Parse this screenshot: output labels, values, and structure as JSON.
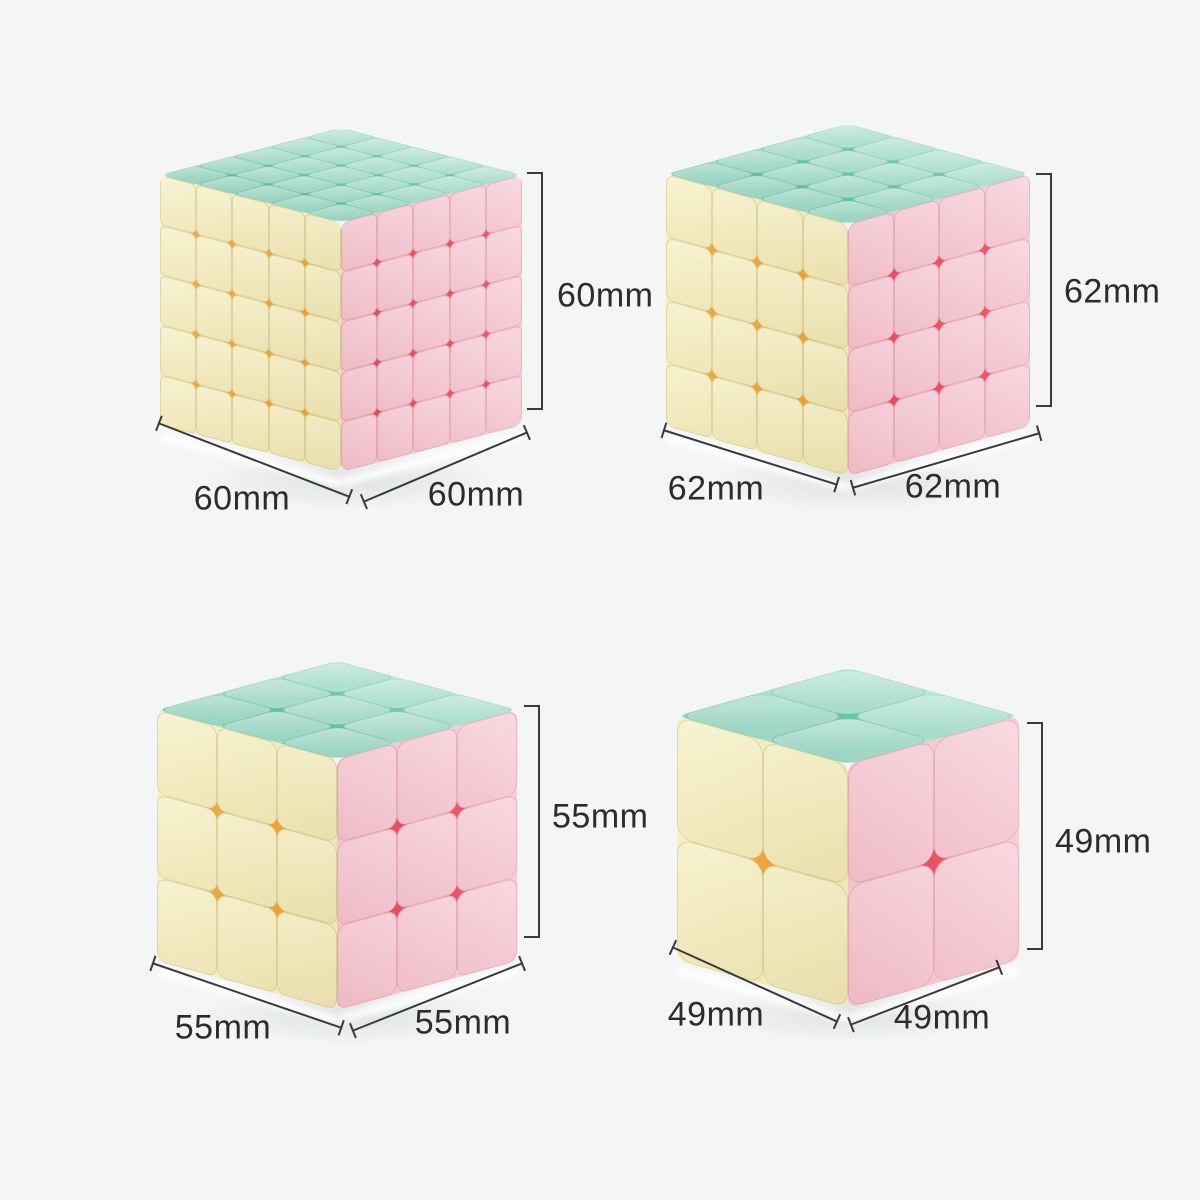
{
  "colors": {
    "background": "#f4f6f5",
    "dimension_line": "#3a3a3a",
    "label_text": "#2c2c2c",
    "top_face_tile": "#a9e1cf",
    "top_face_accent": "#57c2a3",
    "left_face_tile": "#f5eebc",
    "left_face_accent": "#eea02f",
    "right_face_tile": "#f7c9d3",
    "right_face_accent": "#e8485a"
  },
  "cubes": [
    {
      "name": "5x5-cube",
      "grid": 5,
      "height_label": "60mm",
      "width_label": "60mm",
      "depth_label": "60mm"
    },
    {
      "name": "4x4-cube",
      "grid": 4,
      "height_label": "62mm",
      "width_label": "62mm",
      "depth_label": "62mm"
    },
    {
      "name": "3x3-cube",
      "grid": 3,
      "height_label": "55mm",
      "width_label": "55mm",
      "depth_label": "55mm"
    },
    {
      "name": "2x2-cube",
      "grid": 2,
      "height_label": "49mm",
      "width_label": "49mm",
      "depth_label": "49mm"
    }
  ]
}
